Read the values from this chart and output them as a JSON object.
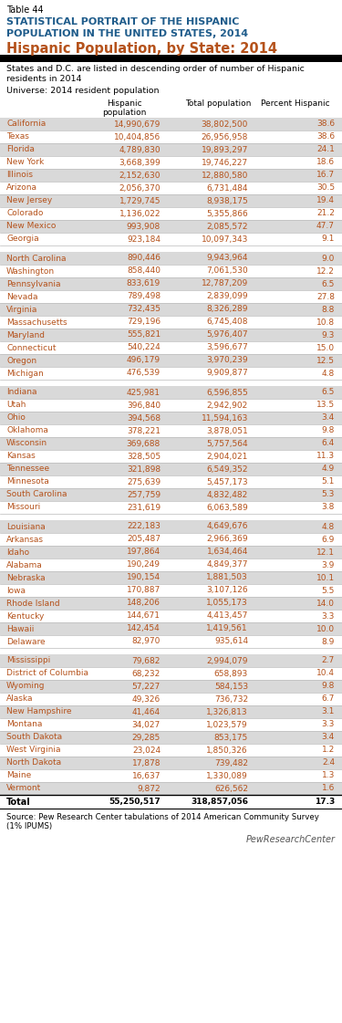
{
  "table_num": "Table 44",
  "title1": "STATISTICAL PORTRAIT OF THE HISPANIC",
  "title2": "POPULATION IN THE UNITED STATES, 2014",
  "subtitle": "Hispanic Population, by State: 2014",
  "note1": "States and D.C. are listed in descending order of number of Hispanic",
  "note2": "residents in 2014",
  "universe": "Universe: 2014 resident population",
  "col_headers": [
    "Hispanic\npopulation",
    "Total population",
    "Percent Hispanic"
  ],
  "footer": "Source: Pew Research Center tabulations of 2014 American Community Survey\n(1% IPUMS)",
  "footer2": "PewResearchCenter",
  "rows": [
    {
      "state": "California",
      "hisp": "14,990,679",
      "total": "38,802,500",
      "pct": "38.6",
      "group": 1
    },
    {
      "state": "Texas",
      "hisp": "10,404,856",
      "total": "26,956,958",
      "pct": "38.6",
      "group": 1
    },
    {
      "state": "Florida",
      "hisp": "4,789,830",
      "total": "19,893,297",
      "pct": "24.1",
      "group": 1
    },
    {
      "state": "New York",
      "hisp": "3,668,399",
      "total": "19,746,227",
      "pct": "18.6",
      "group": 1
    },
    {
      "state": "Illinois",
      "hisp": "2,152,630",
      "total": "12,880,580",
      "pct": "16.7",
      "group": 1
    },
    {
      "state": "Arizona",
      "hisp": "2,056,370",
      "total": "6,731,484",
      "pct": "30.5",
      "group": 1
    },
    {
      "state": "New Jersey",
      "hisp": "1,729,745",
      "total": "8,938,175",
      "pct": "19.4",
      "group": 1
    },
    {
      "state": "Colorado",
      "hisp": "1,136,022",
      "total": "5,355,866",
      "pct": "21.2",
      "group": 1
    },
    {
      "state": "New Mexico",
      "hisp": "993,908",
      "total": "2,085,572",
      "pct": "47.7",
      "group": 1
    },
    {
      "state": "Georgia",
      "hisp": "923,184",
      "total": "10,097,343",
      "pct": "9.1",
      "group": 1
    },
    {
      "state": "North Carolina",
      "hisp": "890,446",
      "total": "9,943,964",
      "pct": "9.0",
      "group": 2
    },
    {
      "state": "Washington",
      "hisp": "858,440",
      "total": "7,061,530",
      "pct": "12.2",
      "group": 2
    },
    {
      "state": "Pennsylvania",
      "hisp": "833,619",
      "total": "12,787,209",
      "pct": "6.5",
      "group": 2
    },
    {
      "state": "Nevada",
      "hisp": "789,498",
      "total": "2,839,099",
      "pct": "27.8",
      "group": 2
    },
    {
      "state": "Virginia",
      "hisp": "732,435",
      "total": "8,326,289",
      "pct": "8.8",
      "group": 2
    },
    {
      "state": "Massachusetts",
      "hisp": "729,196",
      "total": "6,745,408",
      "pct": "10.8",
      "group": 2
    },
    {
      "state": "Maryland",
      "hisp": "555,821",
      "total": "5,976,407",
      "pct": "9.3",
      "group": 2
    },
    {
      "state": "Connecticut",
      "hisp": "540,224",
      "total": "3,596,677",
      "pct": "15.0",
      "group": 2
    },
    {
      "state": "Oregon",
      "hisp": "496,179",
      "total": "3,970,239",
      "pct": "12.5",
      "group": 2
    },
    {
      "state": "Michigan",
      "hisp": "476,539",
      "total": "9,909,877",
      "pct": "4.8",
      "group": 2
    },
    {
      "state": "Indiana",
      "hisp": "425,981",
      "total": "6,596,855",
      "pct": "6.5",
      "group": 3
    },
    {
      "state": "Utah",
      "hisp": "396,840",
      "total": "2,942,902",
      "pct": "13.5",
      "group": 3
    },
    {
      "state": "Ohio",
      "hisp": "394,568",
      "total": "11,594,163",
      "pct": "3.4",
      "group": 3
    },
    {
      "state": "Oklahoma",
      "hisp": "378,221",
      "total": "3,878,051",
      "pct": "9.8",
      "group": 3
    },
    {
      "state": "Wisconsin",
      "hisp": "369,688",
      "total": "5,757,564",
      "pct": "6.4",
      "group": 3
    },
    {
      "state": "Kansas",
      "hisp": "328,505",
      "total": "2,904,021",
      "pct": "11.3",
      "group": 3
    },
    {
      "state": "Tennessee",
      "hisp": "321,898",
      "total": "6,549,352",
      "pct": "4.9",
      "group": 3
    },
    {
      "state": "Minnesota",
      "hisp": "275,639",
      "total": "5,457,173",
      "pct": "5.1",
      "group": 3
    },
    {
      "state": "South Carolina",
      "hisp": "257,759",
      "total": "4,832,482",
      "pct": "5.3",
      "group": 3
    },
    {
      "state": "Missouri",
      "hisp": "231,619",
      "total": "6,063,589",
      "pct": "3.8",
      "group": 3
    },
    {
      "state": "Louisiana",
      "hisp": "222,183",
      "total": "4,649,676",
      "pct": "4.8",
      "group": 4
    },
    {
      "state": "Arkansas",
      "hisp": "205,487",
      "total": "2,966,369",
      "pct": "6.9",
      "group": 4
    },
    {
      "state": "Idaho",
      "hisp": "197,864",
      "total": "1,634,464",
      "pct": "12.1",
      "group": 4
    },
    {
      "state": "Alabama",
      "hisp": "190,249",
      "total": "4,849,377",
      "pct": "3.9",
      "group": 4
    },
    {
      "state": "Nebraska",
      "hisp": "190,154",
      "total": "1,881,503",
      "pct": "10.1",
      "group": 4
    },
    {
      "state": "Iowa",
      "hisp": "170,887",
      "total": "3,107,126",
      "pct": "5.5",
      "group": 4
    },
    {
      "state": "Rhode Island",
      "hisp": "148,206",
      "total": "1,055,173",
      "pct": "14.0",
      "group": 4
    },
    {
      "state": "Kentucky",
      "hisp": "144,671",
      "total": "4,413,457",
      "pct": "3.3",
      "group": 4
    },
    {
      "state": "Hawaii",
      "hisp": "142,454",
      "total": "1,419,561",
      "pct": "10.0",
      "group": 4
    },
    {
      "state": "Delaware",
      "hisp": "82,970",
      "total": "935,614",
      "pct": "8.9",
      "group": 4
    },
    {
      "state": "Mississippi",
      "hisp": "79,682",
      "total": "2,994,079",
      "pct": "2.7",
      "group": 5
    },
    {
      "state": "District of Columbia",
      "hisp": "68,232",
      "total": "658,893",
      "pct": "10.4",
      "group": 5
    },
    {
      "state": "Wyoming",
      "hisp": "57,227",
      "total": "584,153",
      "pct": "9.8",
      "group": 5
    },
    {
      "state": "Alaska",
      "hisp": "49,326",
      "total": "736,732",
      "pct": "6.7",
      "group": 5
    },
    {
      "state": "New Hampshire",
      "hisp": "41,464",
      "total": "1,326,813",
      "pct": "3.1",
      "group": 5
    },
    {
      "state": "Montana",
      "hisp": "34,027",
      "total": "1,023,579",
      "pct": "3.3",
      "group": 5
    },
    {
      "state": "South Dakota",
      "hisp": "29,285",
      "total": "853,175",
      "pct": "3.4",
      "group": 5
    },
    {
      "state": "West Virginia",
      "hisp": "23,024",
      "total": "1,850,326",
      "pct": "1.2",
      "group": 5
    },
    {
      "state": "North Dakota",
      "hisp": "17,878",
      "total": "739,482",
      "pct": "2.4",
      "group": 5
    },
    {
      "state": "Maine",
      "hisp": "16,637",
      "total": "1,330,089",
      "pct": "1.3",
      "group": 5
    },
    {
      "state": "Vermont",
      "hisp": "9,872",
      "total": "626,562",
      "pct": "1.6",
      "group": 5
    }
  ],
  "total_row": {
    "state": "Total",
    "hisp": "55,250,517",
    "total": "318,857,056",
    "pct": "17.3"
  },
  "colors": {
    "title1_color": "#1f5c8b",
    "subtitle_color": "#b5521b",
    "data_color": "#b5521b",
    "row_alt_bg": "#d9d9d9",
    "row_bg": "#ffffff",
    "gap_bg": "#ffffff",
    "separator_color": "#bbbbbb",
    "text_dark": "#000000",
    "pew_color": "#555555"
  }
}
